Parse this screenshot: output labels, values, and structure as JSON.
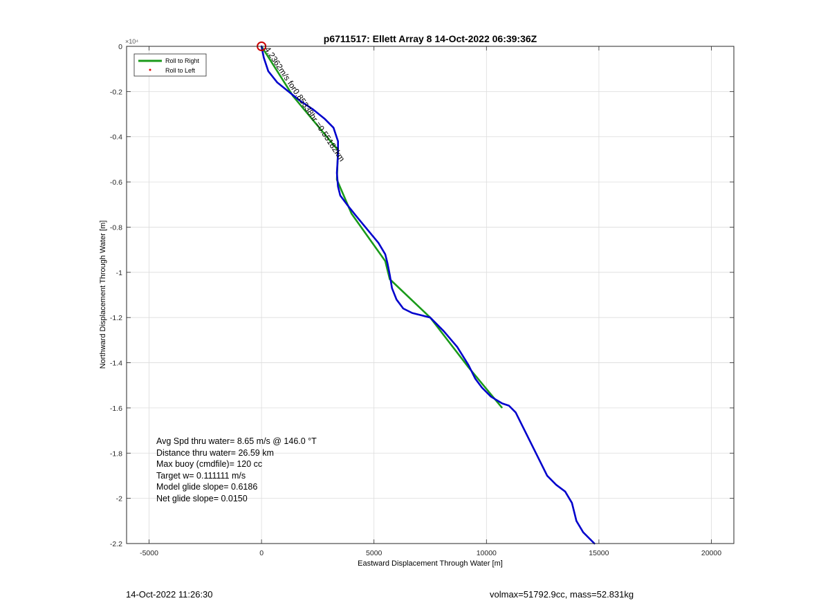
{
  "chart_data": {
    "type": "line",
    "title": "p6711517: Ellett Array 8 14-Oct-2022 06:39:36Z",
    "xlabel": "Eastward Displacement Through Water [m]",
    "ylabel": "Northward Displacement Through Water [m]",
    "xlim": [
      -6000,
      21000
    ],
    "ylim": [
      -22000,
      0
    ],
    "xticks": [
      -5000,
      0,
      5000,
      10000,
      15000,
      20000
    ],
    "yticks": [
      0,
      -2000,
      -4000,
      -6000,
      -8000,
      -10000,
      -12000,
      -14000,
      -16000,
      -18000,
      -20000,
      -22000
    ],
    "xtick_labels": [
      "-5000",
      "0",
      "5000",
      "10000",
      "15000",
      "20000"
    ],
    "ytick_labels": [
      "0",
      "-0.2",
      "-0.4",
      "-0.6",
      "-0.8",
      "-1",
      "-1.2",
      "-1.4",
      "-1.6",
      "-1.8",
      "-2",
      "-2.2"
    ],
    "y_exponent_label": "×10⁴",
    "grid": true,
    "legend_position": "top-left",
    "series": [
      {
        "name": "Roll to Right",
        "color": "#1a9a1a",
        "x": [
          0,
          1400,
          3400,
          3350,
          4000,
          5500,
          5700,
          7500,
          9200,
          10700
        ],
        "y": [
          0,
          -2200,
          -4600,
          -5900,
          -7400,
          -9500,
          -10300,
          -12000,
          -14200,
          -16000
        ]
      },
      {
        "name": "Roll to Left",
        "color": "#e00000",
        "x": [],
        "y": []
      },
      {
        "name": "track",
        "color": "#0000cc",
        "x": [
          0,
          100,
          300,
          700,
          1200,
          1700,
          2300,
          2800,
          3200,
          3400,
          3400,
          3350,
          3400,
          3500,
          3800,
          4200,
          4700,
          5200,
          5500,
          5600,
          5700,
          5800,
          6000,
          6300,
          6700,
          7100,
          7500,
          8100,
          8700,
          9200,
          9500,
          9800,
          10200,
          10700,
          11000,
          11300,
          11600,
          12000,
          12400,
          12700,
          13100,
          13500,
          13800,
          13900,
          14000,
          14300,
          14800
        ],
        "y": [
          0,
          -500,
          -1100,
          -1600,
          -2000,
          -2400,
          -2800,
          -3200,
          -3600,
          -4200,
          -4800,
          -5600,
          -6200,
          -6600,
          -7000,
          -7500,
          -8100,
          -8700,
          -9200,
          -9600,
          -10100,
          -10700,
          -11200,
          -11600,
          -11800,
          -11900,
          -12000,
          -12600,
          -13300,
          -14100,
          -14700,
          -15100,
          -15500,
          -15800,
          -15900,
          -16200,
          -16800,
          -17600,
          -18400,
          -19000,
          -19400,
          -19700,
          -20200,
          -20600,
          -21000,
          -21500,
          -22000
        ]
      }
    ],
    "start_marker": {
      "x": 0,
      "y": 0,
      "color": "#cc0000"
    },
    "annotation": {
      "text": "4.2362m/s for0.85338hr =0.55182km",
      "x": 0,
      "y": 0,
      "rotation_deg": 56
    }
  },
  "stats": {
    "avg_speed": "Avg Spd thru water=  8.65 m/s @ 146.0 °T",
    "distance": "Distance thru water= 26.59 km",
    "max_buoy": "Max buoy (cmdfile)= 120 cc",
    "target_w": "Target w= 0.111111 m/s",
    "model_glide": "Model glide slope= 0.6186",
    "net_glide": "Net glide slope= 0.0150"
  },
  "footer": {
    "timestamp": "14-Oct-2022 11:26:30",
    "volmax_mass": "volmax=51792.9cc, mass=52.831kg"
  }
}
